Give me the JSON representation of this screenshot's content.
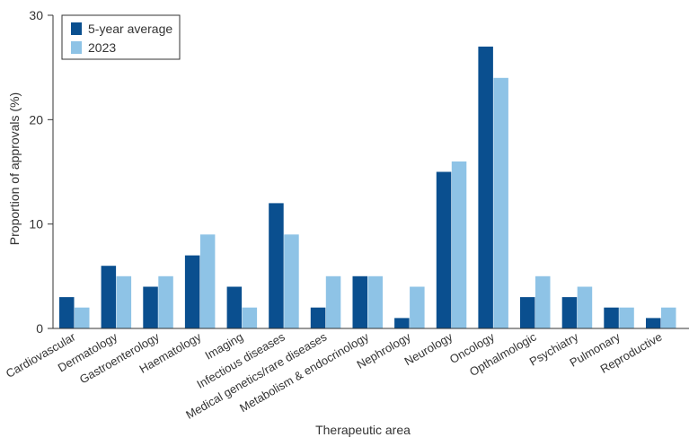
{
  "chart_data": {
    "type": "bar",
    "xlabel": "Therapeutic area",
    "ylabel": "Proportion of approvals (%)",
    "ylim": [
      0,
      30
    ],
    "yticks": [
      0,
      10,
      20,
      30
    ],
    "grid": false,
    "legend_position": "top-left",
    "categories": [
      "Cardiovascular",
      "Dermatology",
      "Gastroenterology",
      "Haematology",
      "Imaging",
      "Infectious diseases",
      "Medical genetics/rare diseases",
      "Metabolism & endocrinology",
      "Nephrology",
      "Neurology",
      "Oncology",
      "Opthalmologic",
      "Psychiatry",
      "Pulmonary",
      "Reproductive"
    ],
    "series": [
      {
        "name": "5-year average",
        "color": "#0a4f8f",
        "values": [
          3,
          6,
          4,
          7,
          4,
          12,
          2,
          5,
          1,
          15,
          27,
          3,
          3,
          2,
          1
        ]
      },
      {
        "name": "2023",
        "color": "#8ec3e6",
        "values": [
          2,
          5,
          5,
          9,
          2,
          9,
          5,
          5,
          4,
          16,
          24,
          5,
          4,
          2,
          2
        ]
      }
    ]
  }
}
